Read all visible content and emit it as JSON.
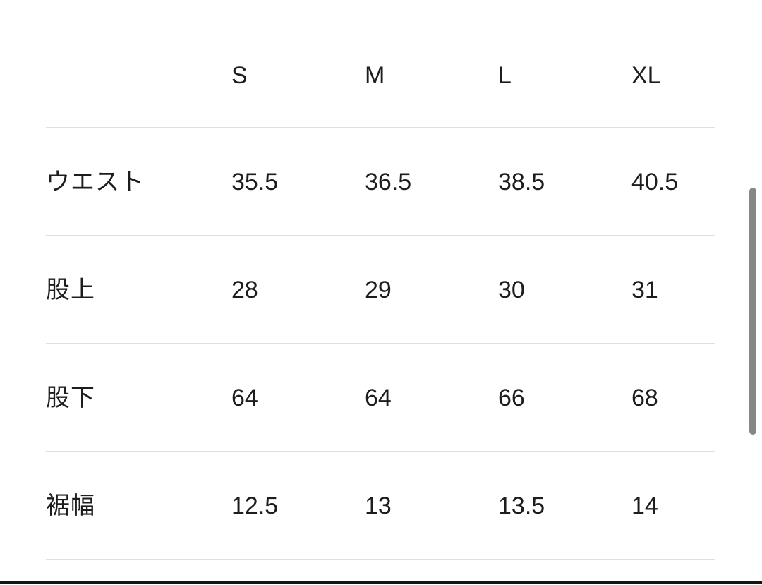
{
  "size_chart": {
    "columns": [
      "S",
      "M",
      "L",
      "XL"
    ],
    "rows": [
      {
        "label": "ウエスト",
        "values": [
          "35.5",
          "36.5",
          "38.5",
          "40.5"
        ]
      },
      {
        "label": "股上",
        "values": [
          "28",
          "29",
          "30",
          "31"
        ]
      },
      {
        "label": "股下",
        "values": [
          "64",
          "64",
          "66",
          "68"
        ]
      },
      {
        "label": "裾幅",
        "values": [
          "12.5",
          "13",
          "13.5",
          "14"
        ]
      }
    ]
  },
  "colors": {
    "background": "#ffffff",
    "text": "#1d1d1d",
    "divider": "#dfdfdf",
    "scrollbar_thumb": "#878787",
    "bottom_bar": "#151515"
  },
  "scrollbar": {
    "visible": true
  }
}
